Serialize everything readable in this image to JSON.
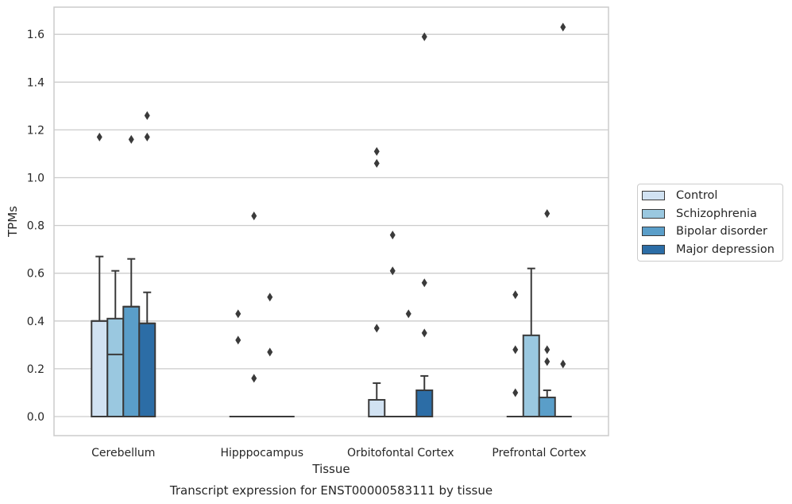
{
  "chart_data": {
    "type": "box",
    "title": "Transcript expression for ENST00000583111 by tissue",
    "xlabel": "Tissue",
    "ylabel": "TPMs",
    "ylim": [
      -0.08,
      1.72
    ],
    "yticks": [
      "0.0",
      "0.2",
      "0.4",
      "0.6",
      "0.8",
      "1.0",
      "1.2",
      "1.4",
      "1.6"
    ],
    "grid": "horizontal",
    "legend_position": "right",
    "categories": [
      "Cerebellum",
      "Hipppocampus",
      "Orbitofontal Cortex",
      "Prefrontal Cortex"
    ],
    "series": [
      {
        "name": "Control",
        "color": "#d1e2f2",
        "boxes": [
          {
            "q1": 0.0,
            "median": 0.4,
            "q3": 0.4,
            "whisker_low": 0.0,
            "whisker_high": 0.67,
            "outliers": [
              1.17
            ]
          },
          {
            "q1": 0.0,
            "median": 0.0,
            "q3": 0.0,
            "whisker_low": 0.0,
            "whisker_high": 0.0,
            "outliers": [
              0.43,
              0.32
            ]
          },
          {
            "q1": 0.0,
            "median": 0.0,
            "q3": 0.07,
            "whisker_low": 0.0,
            "whisker_high": 0.14,
            "outliers": [
              1.11,
              1.06,
              0.37
            ]
          },
          {
            "q1": 0.0,
            "median": 0.0,
            "q3": 0.0,
            "whisker_low": 0.0,
            "whisker_high": 0.0,
            "outliers": [
              0.51,
              0.28,
              0.1
            ]
          }
        ]
      },
      {
        "name": "Schizophrenia",
        "color": "#9ac8e0",
        "boxes": [
          {
            "q1": 0.0,
            "median": 0.26,
            "q3": 0.41,
            "whisker_low": 0.0,
            "whisker_high": 0.61,
            "outliers": []
          },
          {
            "q1": 0.0,
            "median": 0.0,
            "q3": 0.0,
            "whisker_low": 0.0,
            "whisker_high": 0.0,
            "outliers": [
              0.84,
              0.16
            ]
          },
          {
            "q1": 0.0,
            "median": 0.0,
            "q3": 0.0,
            "whisker_low": 0.0,
            "whisker_high": 0.0,
            "outliers": [
              0.76,
              0.61
            ]
          },
          {
            "q1": 0.0,
            "median": 0.0,
            "q3": 0.34,
            "whisker_low": 0.0,
            "whisker_high": 0.62,
            "outliers": []
          }
        ]
      },
      {
        "name": "Bipolar disorder",
        "color": "#5a9ec9",
        "boxes": [
          {
            "q1": 0.0,
            "median": 0.46,
            "q3": 0.46,
            "whisker_low": 0.0,
            "whisker_high": 0.66,
            "outliers": [
              1.16
            ]
          },
          {
            "q1": 0.0,
            "median": 0.0,
            "q3": 0.0,
            "whisker_low": 0.0,
            "whisker_high": 0.0,
            "outliers": [
              0.5,
              0.27
            ]
          },
          {
            "q1": 0.0,
            "median": 0.0,
            "q3": 0.0,
            "whisker_low": 0.0,
            "whisker_high": 0.0,
            "outliers": [
              0.43
            ]
          },
          {
            "q1": 0.0,
            "median": 0.0,
            "q3": 0.08,
            "whisker_low": 0.0,
            "whisker_high": 0.11,
            "outliers": [
              0.85,
              0.28,
              0.23
            ]
          }
        ]
      },
      {
        "name": "Major depression",
        "color": "#2c6da6",
        "boxes": [
          {
            "q1": 0.0,
            "median": 0.39,
            "q3": 0.39,
            "whisker_low": 0.0,
            "whisker_high": 0.52,
            "outliers": [
              1.26,
              1.17
            ]
          },
          {
            "q1": 0.0,
            "median": 0.0,
            "q3": 0.0,
            "whisker_low": 0.0,
            "whisker_high": 0.0,
            "outliers": []
          },
          {
            "q1": 0.0,
            "median": 0.0,
            "q3": 0.11,
            "whisker_low": 0.0,
            "whisker_high": 0.17,
            "outliers": [
              1.59,
              0.56,
              0.35
            ]
          },
          {
            "q1": 0.0,
            "median": 0.0,
            "q3": 0.0,
            "whisker_low": 0.0,
            "whisker_high": 0.0,
            "outliers": [
              1.63,
              0.22
            ]
          }
        ]
      }
    ]
  }
}
